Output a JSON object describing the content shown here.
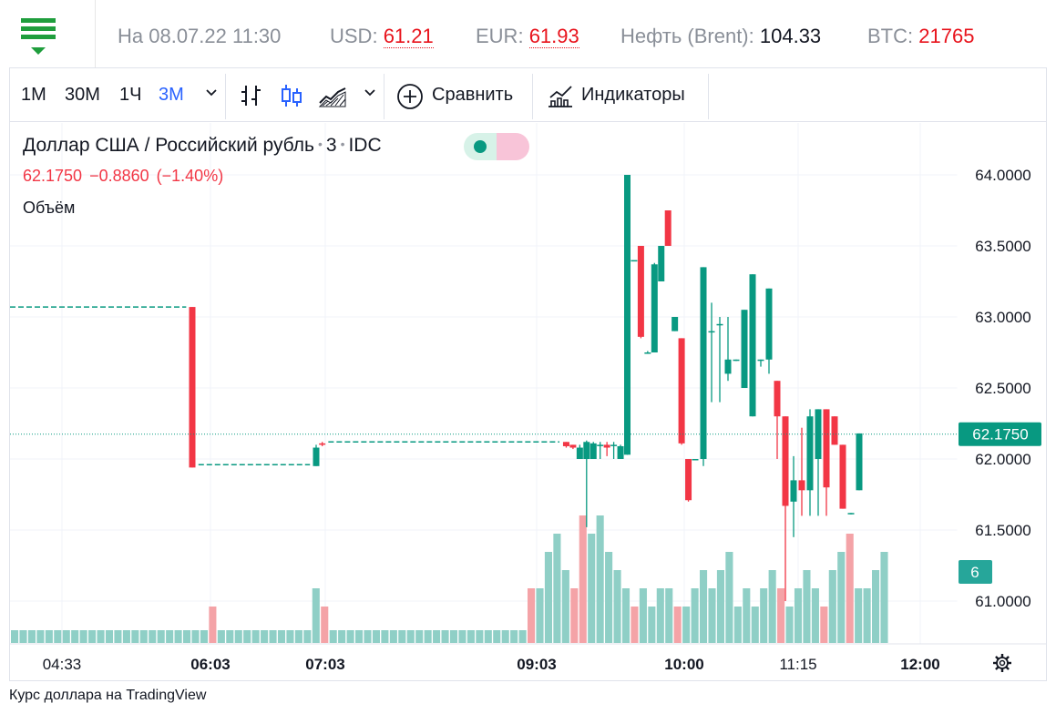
{
  "ticker": {
    "date": "На 08.07.22 11:30",
    "usd_label": "USD:",
    "usd_value": "61.21",
    "eur_label": "EUR:",
    "eur_value": "61.93",
    "brent_label": "Нефть (Brent):",
    "brent_value": "104.33",
    "btc_label": "BTC:",
    "btc_value": "21765"
  },
  "toolbar": {
    "intervals": [
      "1M",
      "30M",
      "1Ч",
      "3M"
    ],
    "active_interval": "3M",
    "compare_label": "Сравнить",
    "indicators_label": "Индикаторы"
  },
  "legend": {
    "symbol": "Доллар США / Российский рубль",
    "interval": "3",
    "exchange": "IDC",
    "last": "62.1750",
    "change": "−0.8860",
    "change_pct": "(−1.40%)",
    "volume_label": "Объём"
  },
  "colors": {
    "up": "#089981",
    "down": "#f23645",
    "vol_up": "#8fcfc6",
    "vol_down": "#f4a3a7",
    "accent": "#2962ff"
  },
  "chart_data": {
    "type": "candlestick",
    "y_ticks": [
      "64.0000",
      "63.5000",
      "63.0000",
      "62.5000",
      "62.0000",
      "61.5000",
      "61.0000"
    ],
    "ylim": [
      60.7,
      64.2
    ],
    "last_price_label": "62.1750",
    "last_price": 62.175,
    "volume_label": "6",
    "x_ticks": [
      "04:33",
      "06:03",
      "07:03",
      "09:03",
      "10:00",
      "11:15",
      "12:00"
    ],
    "x_ticks_bold": [
      false,
      true,
      true,
      true,
      true,
      false,
      true
    ],
    "flat_segments": [
      {
        "from": "04:30",
        "to": "05:57",
        "price": 63.07
      },
      {
        "from": "06:03",
        "to": "06:57",
        "price": 61.96
      },
      {
        "from": "07:06",
        "to": "09:00",
        "price": 62.12
      }
    ],
    "candles": [
      {
        "t": "06:00",
        "o": 63.07,
        "h": 63.07,
        "l": 61.94,
        "c": 61.94
      },
      {
        "t": "07:00",
        "o": 61.95,
        "h": 62.1,
        "l": 61.95,
        "c": 62.08
      },
      {
        "t": "07:03",
        "o": 62.11,
        "h": 62.12,
        "l": 62.09,
        "c": 62.1
      },
      {
        "t": "09:03",
        "o": 62.12,
        "h": 62.12,
        "l": 62.08,
        "c": 62.09
      },
      {
        "t": "09:06",
        "o": 62.1,
        "h": 62.1,
        "l": 62.07,
        "c": 62.08
      },
      {
        "t": "09:09",
        "o": 62.0,
        "h": 62.1,
        "l": 62.0,
        "c": 62.08
      },
      {
        "t": "09:12",
        "o": 62.0,
        "h": 62.13,
        "l": 61.52,
        "c": 62.12
      },
      {
        "t": "09:15",
        "o": 62.0,
        "h": 62.12,
        "l": 62.0,
        "c": 62.11
      },
      {
        "t": "09:18",
        "o": 62.1,
        "h": 62.12,
        "l": 62.0,
        "c": 62.1
      },
      {
        "t": "09:21",
        "o": 62.1,
        "h": 62.12,
        "l": 62.02,
        "c": 62.08
      },
      {
        "t": "09:24",
        "o": 62.1,
        "h": 62.12,
        "l": 62.0,
        "c": 62.1
      },
      {
        "t": "09:27",
        "o": 62.0,
        "h": 62.1,
        "l": 62.0,
        "c": 62.09
      },
      {
        "t": "09:30",
        "o": 62.03,
        "h": 64.0,
        "l": 62.03,
        "c": 64.0
      },
      {
        "t": "09:33",
        "o": 63.4,
        "h": 63.4,
        "l": 63.4,
        "c": 63.4
      },
      {
        "t": "09:36",
        "o": 63.5,
        "h": 63.5,
        "l": 62.85,
        "c": 62.86
      },
      {
        "t": "09:39",
        "o": 62.75,
        "h": 62.76,
        "l": 62.74,
        "c": 62.75
      },
      {
        "t": "09:42",
        "o": 62.75,
        "h": 63.38,
        "l": 62.75,
        "c": 63.37
      },
      {
        "t": "09:45",
        "o": 63.25,
        "h": 63.5,
        "l": 63.25,
        "c": 63.5
      },
      {
        "t": "09:48",
        "o": 63.75,
        "h": 63.75,
        "l": 63.5,
        "c": 63.5
      },
      {
        "t": "09:51",
        "o": 62.9,
        "h": 63.0,
        "l": 62.9,
        "c": 63.0
      },
      {
        "t": "09:54",
        "o": 62.85,
        "h": 62.85,
        "l": 62.1,
        "c": 62.11
      },
      {
        "t": "09:57",
        "o": 62.0,
        "h": 62.0,
        "l": 61.7,
        "c": 61.71
      },
      {
        "t": "10:00",
        "o": 62.0,
        "h": 62.0,
        "l": 62.0,
        "c": 62.0
      },
      {
        "t": "10:03",
        "o": 62.0,
        "h": 63.35,
        "l": 61.95,
        "c": 63.35
      },
      {
        "t": "10:06",
        "o": 62.9,
        "h": 63.1,
        "l": 62.4,
        "c": 62.9
      },
      {
        "t": "10:09",
        "o": 62.95,
        "h": 63.0,
        "l": 62.4,
        "c": 62.95
      },
      {
        "t": "10:12",
        "o": 62.6,
        "h": 63.0,
        "l": 62.55,
        "c": 62.7
      },
      {
        "t": "10:15",
        "o": 62.7,
        "h": 62.7,
        "l": 62.69,
        "c": 62.7
      },
      {
        "t": "10:18",
        "o": 62.5,
        "h": 63.05,
        "l": 62.5,
        "c": 63.05
      },
      {
        "t": "10:21",
        "o": 62.3,
        "h": 63.3,
        "l": 62.3,
        "c": 63.3
      },
      {
        "t": "10:24",
        "o": 62.7,
        "h": 62.7,
        "l": 62.65,
        "c": 62.7
      },
      {
        "t": "10:27",
        "o": 62.7,
        "h": 63.2,
        "l": 62.6,
        "c": 63.2
      },
      {
        "t": "10:30",
        "o": 62.55,
        "h": 62.55,
        "l": 62.0,
        "c": 62.3
      },
      {
        "t": "10:33",
        "o": 62.3,
        "h": 62.3,
        "l": 61.0,
        "c": 61.67
      },
      {
        "t": "10:36",
        "o": 61.7,
        "h": 62.02,
        "l": 61.45,
        "c": 61.85
      },
      {
        "t": "10:39",
        "o": 61.85,
        "h": 62.22,
        "l": 61.6,
        "c": 61.78
      },
      {
        "t": "10:42",
        "o": 61.78,
        "h": 62.35,
        "l": 61.6,
        "c": 62.3
      },
      {
        "t": "10:45",
        "o": 62.0,
        "h": 62.35,
        "l": 61.6,
        "c": 62.35
      },
      {
        "t": "10:48",
        "o": 62.35,
        "h": 62.35,
        "l": 61.6,
        "c": 61.8
      },
      {
        "t": "10:51",
        "o": 62.3,
        "h": 62.3,
        "l": 62.1,
        "c": 62.1
      },
      {
        "t": "10:54",
        "o": 62.1,
        "h": 62.1,
        "l": 61.65,
        "c": 61.65
      },
      {
        "t": "10:57",
        "o": 61.62,
        "h": 61.62,
        "l": 61.61,
        "c": 61.62
      },
      {
        "t": "11:00",
        "o": 61.78,
        "h": 62.18,
        "l": 61.78,
        "c": 62.18
      }
    ],
    "volumes": [
      {
        "kind": "up",
        "v": 1
      },
      {
        "kind": "up",
        "v": 1
      },
      {
        "kind": "up",
        "v": 1
      },
      {
        "kind": "up",
        "v": 1
      },
      {
        "kind": "up",
        "v": 1
      },
      {
        "kind": "up",
        "v": 1
      },
      {
        "kind": "up",
        "v": 1
      },
      {
        "kind": "up",
        "v": 1
      },
      {
        "kind": "up",
        "v": 1
      },
      {
        "kind": "up",
        "v": 1
      },
      {
        "kind": "up",
        "v": 1
      },
      {
        "kind": "up",
        "v": 1
      },
      {
        "kind": "up",
        "v": 1
      },
      {
        "kind": "up",
        "v": 1
      },
      {
        "kind": "up",
        "v": 1
      },
      {
        "kind": "up",
        "v": 1
      },
      {
        "kind": "up",
        "v": 1
      },
      {
        "kind": "up",
        "v": 1
      },
      {
        "kind": "up",
        "v": 1
      },
      {
        "kind": "up",
        "v": 1
      },
      {
        "kind": "up",
        "v": 1
      },
      {
        "kind": "up",
        "v": 1
      },
      {
        "kind": "up",
        "v": 1
      },
      {
        "kind": "down",
        "v": 2
      },
      {
        "kind": "up",
        "v": 1
      },
      {
        "kind": "up",
        "v": 1
      },
      {
        "kind": "up",
        "v": 1
      },
      {
        "kind": "up",
        "v": 1
      },
      {
        "kind": "up",
        "v": 1
      },
      {
        "kind": "up",
        "v": 1
      },
      {
        "kind": "up",
        "v": 1
      },
      {
        "kind": "up",
        "v": 1
      },
      {
        "kind": "up",
        "v": 1
      },
      {
        "kind": "up",
        "v": 1
      },
      {
        "kind": "up",
        "v": 1
      },
      {
        "kind": "up",
        "v": 3
      },
      {
        "kind": "down",
        "v": 2
      },
      {
        "kind": "up",
        "v": 1
      },
      {
        "kind": "up",
        "v": 1
      },
      {
        "kind": "up",
        "v": 1
      },
      {
        "kind": "up",
        "v": 1
      },
      {
        "kind": "up",
        "v": 1
      },
      {
        "kind": "up",
        "v": 1
      },
      {
        "kind": "up",
        "v": 1
      },
      {
        "kind": "up",
        "v": 1
      },
      {
        "kind": "up",
        "v": 1
      },
      {
        "kind": "up",
        "v": 1
      },
      {
        "kind": "up",
        "v": 1
      },
      {
        "kind": "up",
        "v": 1
      },
      {
        "kind": "up",
        "v": 1
      },
      {
        "kind": "up",
        "v": 1
      },
      {
        "kind": "up",
        "v": 1
      },
      {
        "kind": "up",
        "v": 1
      },
      {
        "kind": "up",
        "v": 1
      },
      {
        "kind": "up",
        "v": 1
      },
      {
        "kind": "up",
        "v": 1
      },
      {
        "kind": "up",
        "v": 1
      },
      {
        "kind": "up",
        "v": 1
      },
      {
        "kind": "up",
        "v": 1
      },
      {
        "kind": "up",
        "v": 1
      },
      {
        "kind": "down",
        "v": 3
      },
      {
        "kind": "up",
        "v": 3
      },
      {
        "kind": "up",
        "v": 5
      },
      {
        "kind": "up",
        "v": 6
      },
      {
        "kind": "up",
        "v": 4
      },
      {
        "kind": "down",
        "v": 3
      },
      {
        "kind": "down",
        "v": 7
      },
      {
        "kind": "up",
        "v": 6
      },
      {
        "kind": "up",
        "v": 7
      },
      {
        "kind": "up",
        "v": 5
      },
      {
        "kind": "up",
        "v": 4
      },
      {
        "kind": "up",
        "v": 3
      },
      {
        "kind": "down",
        "v": 2
      },
      {
        "kind": "up",
        "v": 3
      },
      {
        "kind": "up",
        "v": 2
      },
      {
        "kind": "up",
        "v": 3
      },
      {
        "kind": "up",
        "v": 3
      },
      {
        "kind": "down",
        "v": 2
      },
      {
        "kind": "up",
        "v": 2
      },
      {
        "kind": "up",
        "v": 3
      },
      {
        "kind": "up",
        "v": 4
      },
      {
        "kind": "up",
        "v": 3
      },
      {
        "kind": "up",
        "v": 4
      },
      {
        "kind": "up",
        "v": 5
      },
      {
        "kind": "up",
        "v": 2
      },
      {
        "kind": "up",
        "v": 3
      },
      {
        "kind": "up",
        "v": 2
      },
      {
        "kind": "up",
        "v": 3
      },
      {
        "kind": "up",
        "v": 4
      },
      {
        "kind": "down",
        "v": 3
      },
      {
        "kind": "up",
        "v": 2
      },
      {
        "kind": "up",
        "v": 3
      },
      {
        "kind": "up",
        "v": 4
      },
      {
        "kind": "up",
        "v": 3
      },
      {
        "kind": "down",
        "v": 2
      },
      {
        "kind": "up",
        "v": 4
      },
      {
        "kind": "up",
        "v": 5
      },
      {
        "kind": "down",
        "v": 6
      },
      {
        "kind": "up",
        "v": 3
      },
      {
        "kind": "up",
        "v": 3
      },
      {
        "kind": "up",
        "v": 4
      },
      {
        "kind": "up",
        "v": 5
      }
    ]
  },
  "caption": "Курс доллара на TradingView"
}
